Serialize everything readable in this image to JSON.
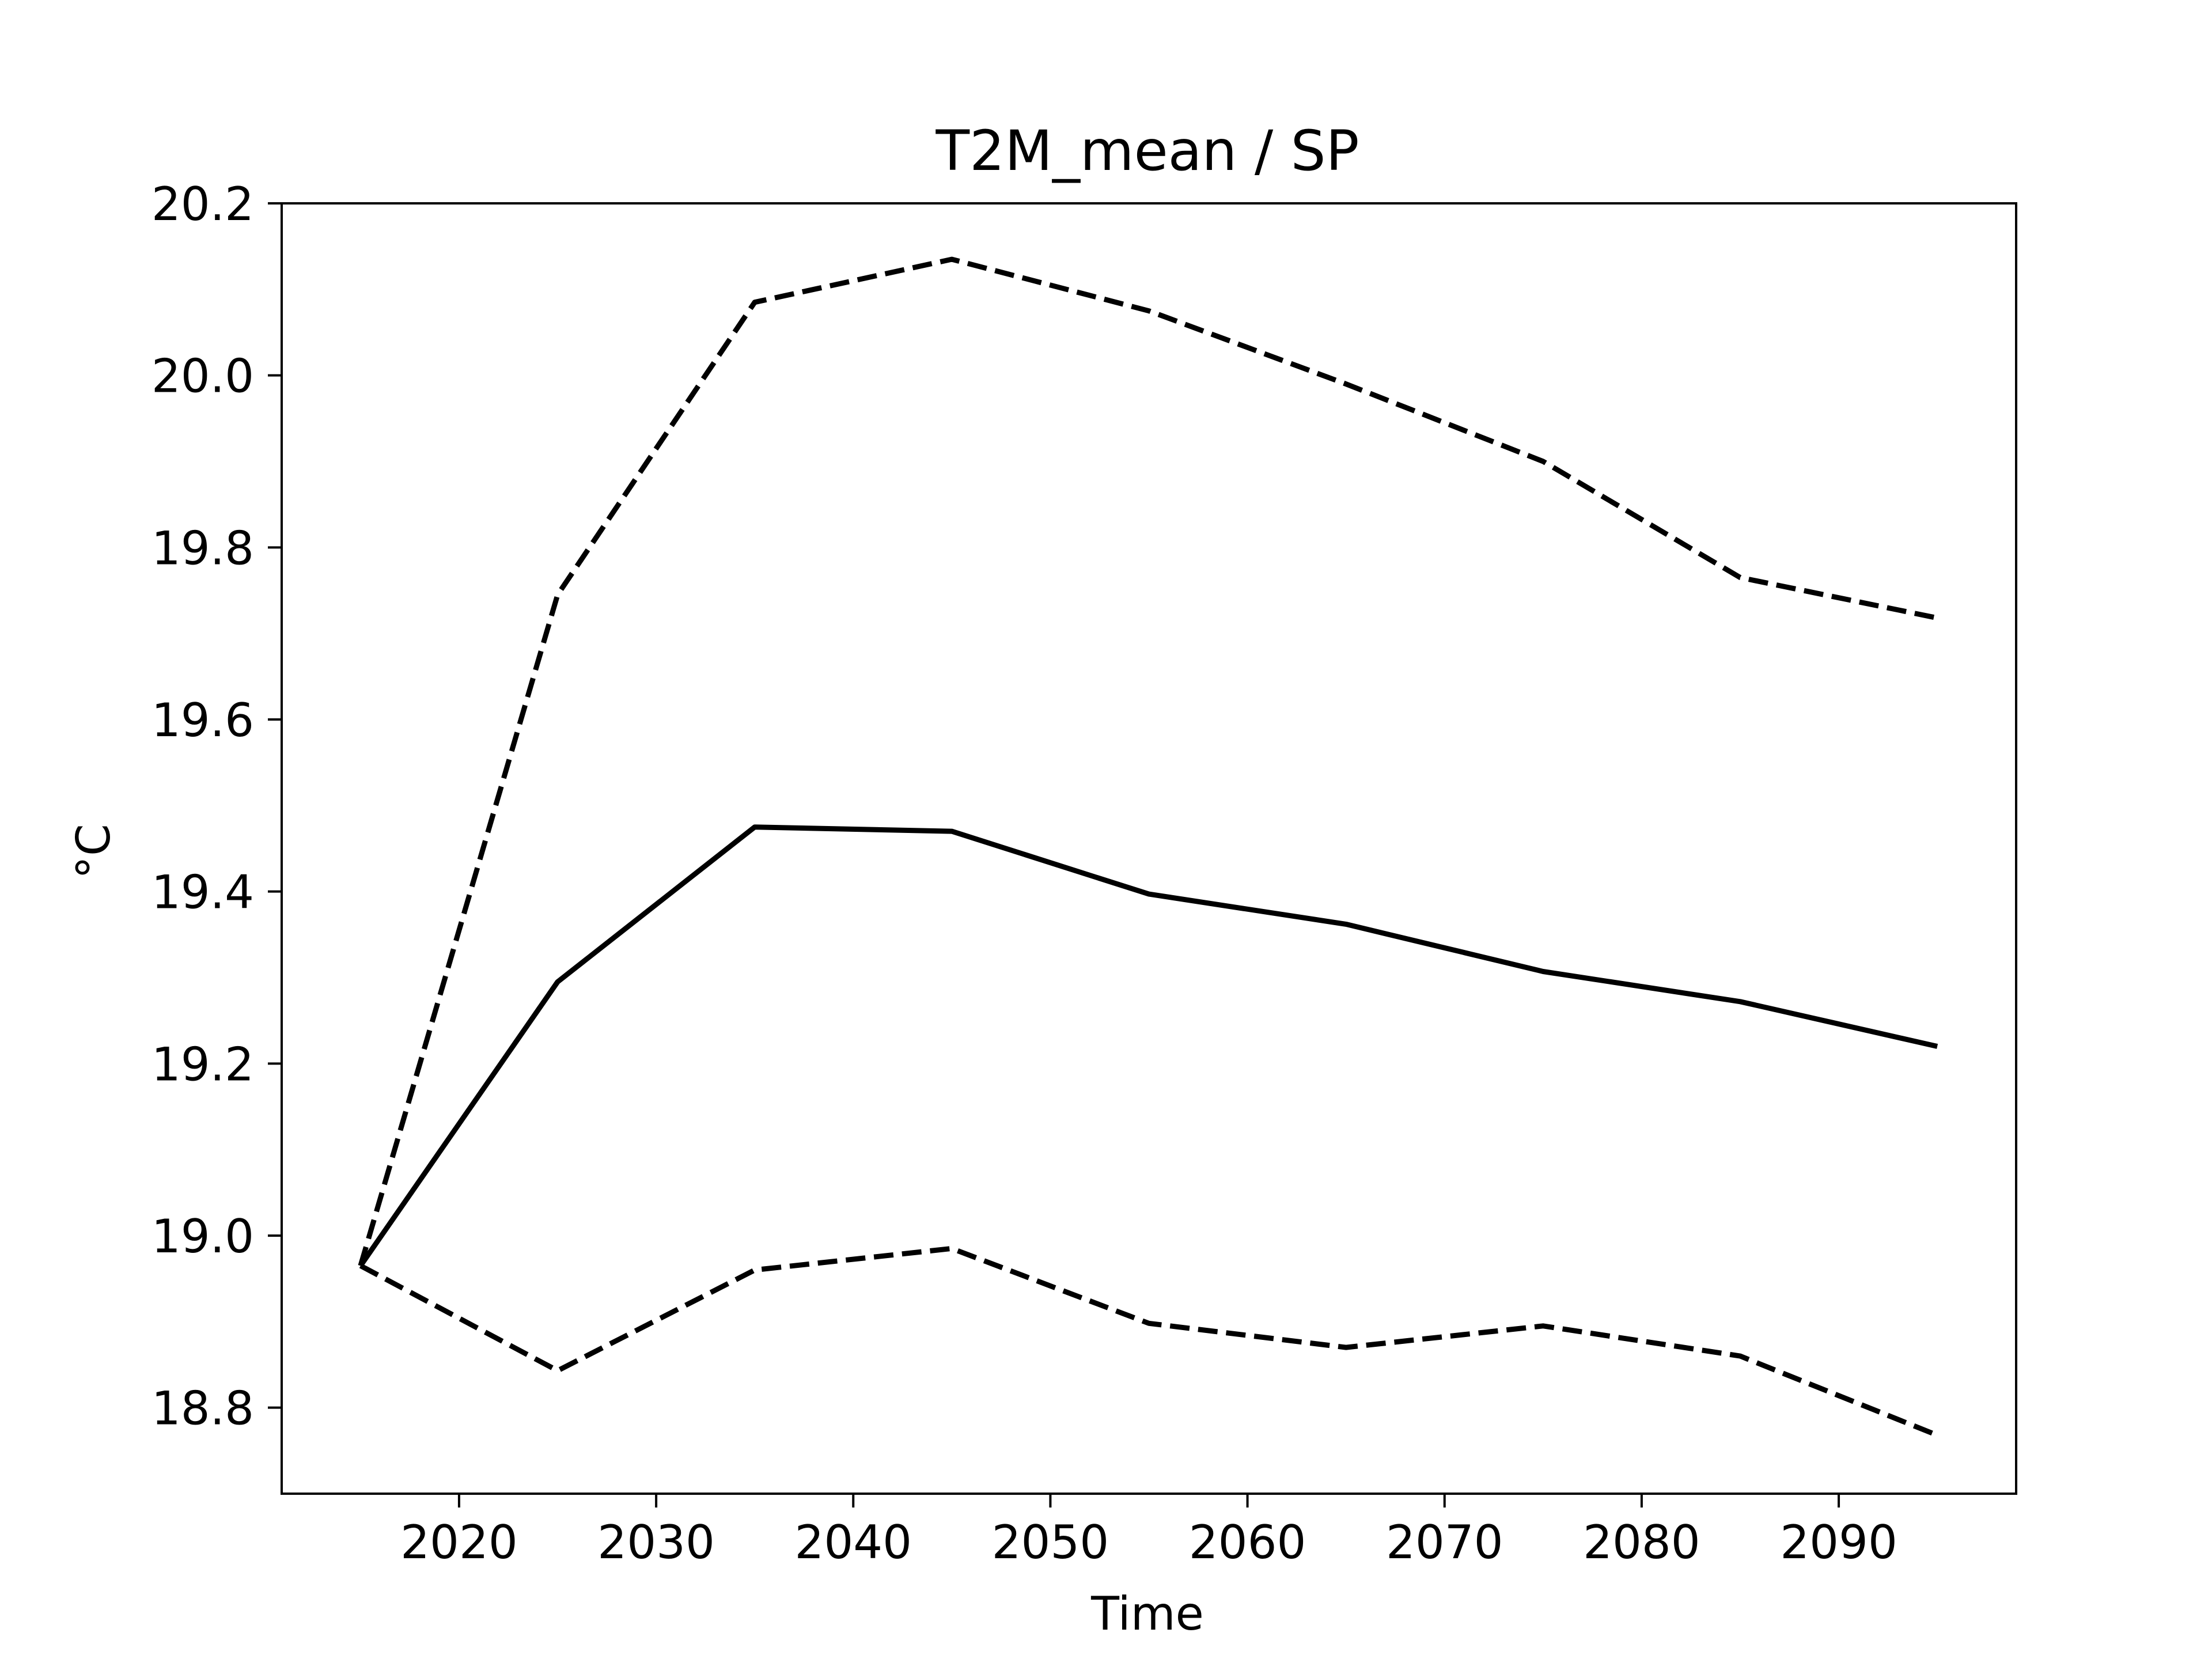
{
  "chart_data": {
    "type": "line",
    "title": "T2M_mean / SP",
    "xlabel": "Time",
    "ylabel": "°C",
    "xlim": [
      2011,
      2099
    ],
    "ylim": [
      18.7,
      20.2
    ],
    "x_ticks": [
      2020,
      2030,
      2040,
      2050,
      2060,
      2070,
      2080,
      2090
    ],
    "y_ticks": [
      18.8,
      19.0,
      19.2,
      19.4,
      19.6,
      19.8,
      20.0,
      20.2
    ],
    "y_tick_labels": [
      "18.8",
      "19.0",
      "19.2",
      "19.4",
      "19.6",
      "19.8",
      "20.0",
      "20.2"
    ],
    "grid": false,
    "x": [
      2015,
      2025,
      2035,
      2045,
      2055,
      2065,
      2075,
      2085,
      2095
    ],
    "series": [
      {
        "style": "solid",
        "color": "#000000",
        "values": [
          18.965,
          19.295,
          19.475,
          19.47,
          19.397,
          19.362,
          19.307,
          19.272,
          19.22
        ]
      },
      {
        "style": "dashed",
        "color": "#000000",
        "values": [
          18.965,
          19.745,
          20.085,
          20.135,
          20.075,
          19.99,
          19.9,
          19.765,
          19.718
        ]
      },
      {
        "style": "dashed",
        "color": "#000000",
        "values": [
          18.965,
          18.843,
          18.96,
          18.985,
          18.898,
          18.87,
          18.895,
          18.86,
          18.768
        ]
      }
    ]
  }
}
